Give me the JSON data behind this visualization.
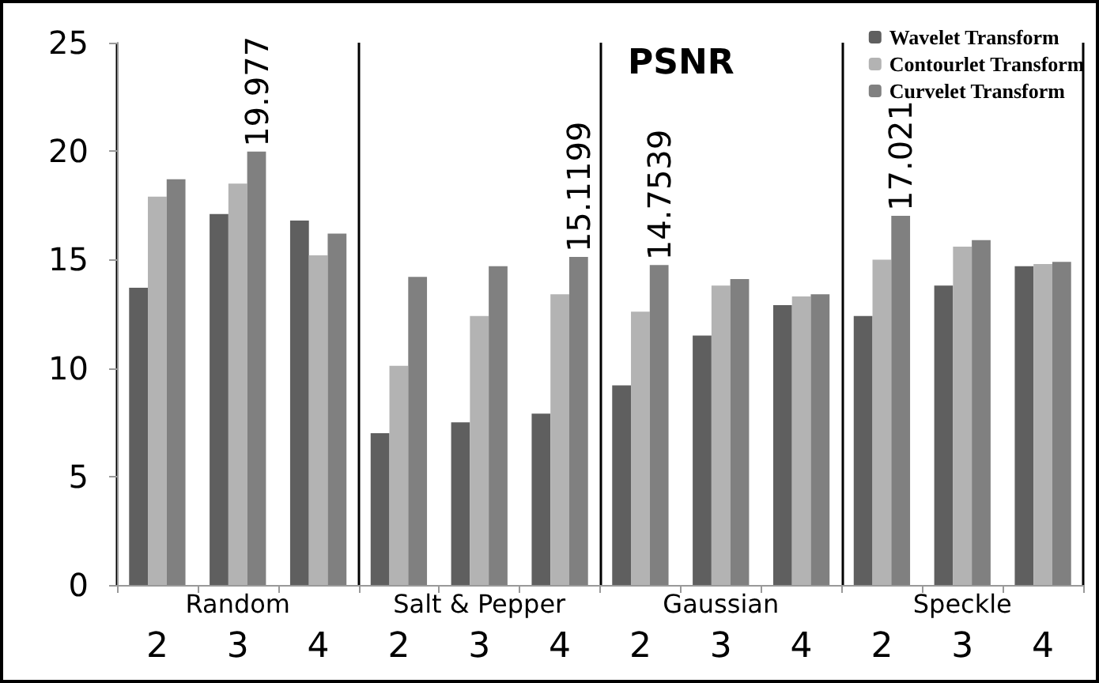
{
  "chart_data": {
    "type": "bar",
    "title": "PSNR",
    "categories": [
      "2",
      "3",
      "4",
      "2",
      "3",
      "4",
      "2",
      "3",
      "4",
      "2",
      "3",
      "4"
    ],
    "annotations": [
      "Random",
      "Salt & Pepper",
      "Gaussian",
      "Speckle"
    ],
    "series": [
      {
        "name": "Wavelet Transform",
        "color": "#5f5f5f",
        "values": [
          13.7,
          17.1,
          16.8,
          7.0,
          7.5,
          7.9,
          9.2,
          11.5,
          12.9,
          12.4,
          13.8,
          14.7
        ]
      },
      {
        "name": "Contourlet Transform",
        "color": "#b3b3b3",
        "values": [
          17.9,
          18.5,
          15.2,
          10.1,
          12.4,
          13.4,
          12.6,
          13.8,
          13.3,
          15.0,
          15.6,
          14.8
        ]
      },
      {
        "name": "Curvelet Transform",
        "color": "#808080",
        "values": [
          18.7,
          19.977,
          16.2,
          14.2,
          14.7,
          15.1199,
          14.7539,
          14.1,
          13.4,
          17.021,
          15.9,
          14.9
        ],
        "value_labels": [
          null,
          "19.977",
          null,
          null,
          null,
          "15.1199",
          "14.7539",
          null,
          null,
          "17.021",
          null,
          null
        ]
      }
    ],
    "ylim": [
      0,
      25
    ],
    "yticks": [
      0,
      5,
      10,
      15,
      20,
      25
    ],
    "legend": "top right",
    "grid": false
  }
}
